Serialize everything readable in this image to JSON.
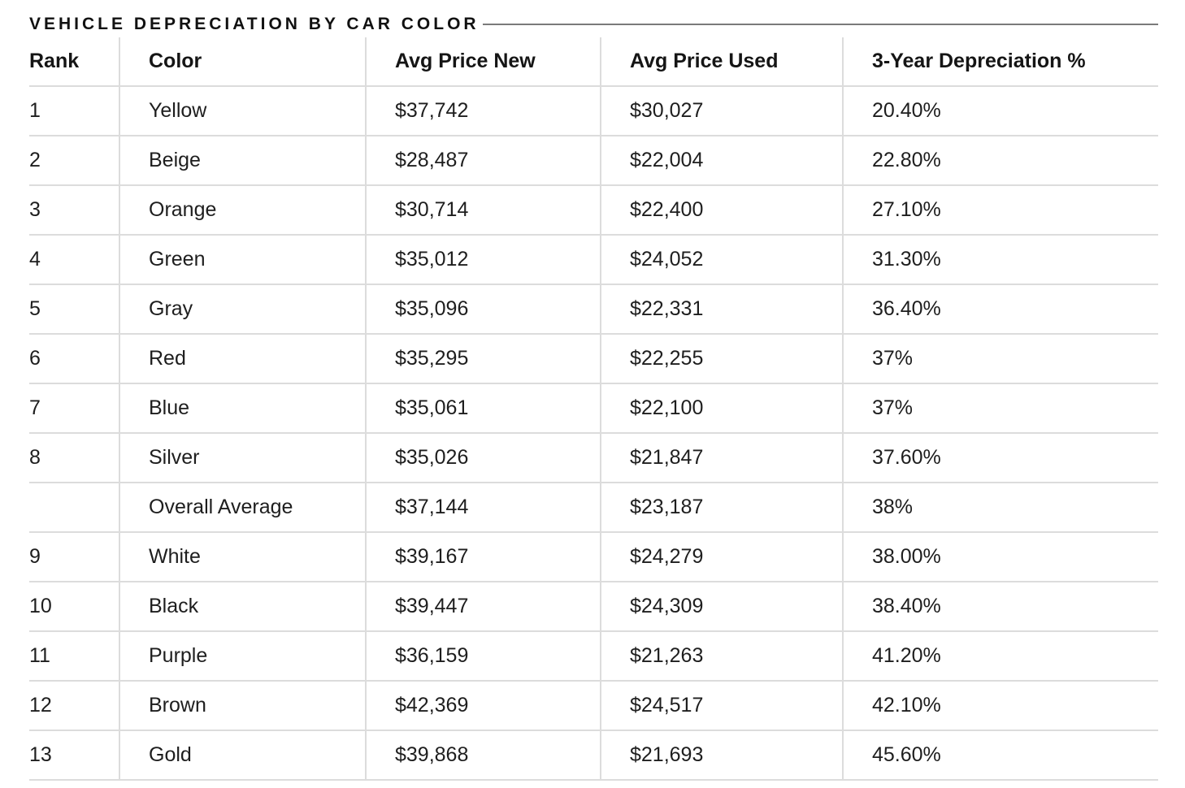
{
  "title": "VEHICLE DEPRECIATION BY CAR COLOR",
  "table": {
    "headers": [
      "Rank",
      "Color",
      "Avg Price New",
      "Avg Price Used",
      "3-Year Depreciation %"
    ],
    "rows": [
      [
        "1",
        "Yellow",
        "$37,742",
        "$30,027",
        "20.40%"
      ],
      [
        "2",
        "Beige",
        "$28,487",
        "$22,004",
        "22.80%"
      ],
      [
        "3",
        "Orange",
        "$30,714",
        "$22,400",
        "27.10%"
      ],
      [
        "4",
        "Green",
        "$35,012",
        "$24,052",
        "31.30%"
      ],
      [
        "5",
        "Gray",
        "$35,096",
        "$22,331",
        "36.40%"
      ],
      [
        "6",
        "Red",
        "$35,295",
        "$22,255",
        "37%"
      ],
      [
        "7",
        "Blue",
        "$35,061",
        "$22,100",
        "37%"
      ],
      [
        "8",
        "Silver",
        "$35,026",
        "$21,847",
        "37.60%"
      ],
      [
        "",
        "Overall Average",
        "$37,144",
        "$23,187",
        "38%"
      ],
      [
        "9",
        "White",
        "$39,167",
        "$24,279",
        "38.00%"
      ],
      [
        "10",
        "Black",
        "$39,447",
        "$24,309",
        "38.40%"
      ],
      [
        "11",
        "Purple",
        "$36,159",
        "$21,263",
        "41.20%"
      ],
      [
        "12",
        "Brown",
        "$42,369",
        "$24,517",
        "42.10%"
      ],
      [
        "13",
        "Gold",
        "$39,868",
        "$21,693",
        "45.60%"
      ]
    ]
  }
}
